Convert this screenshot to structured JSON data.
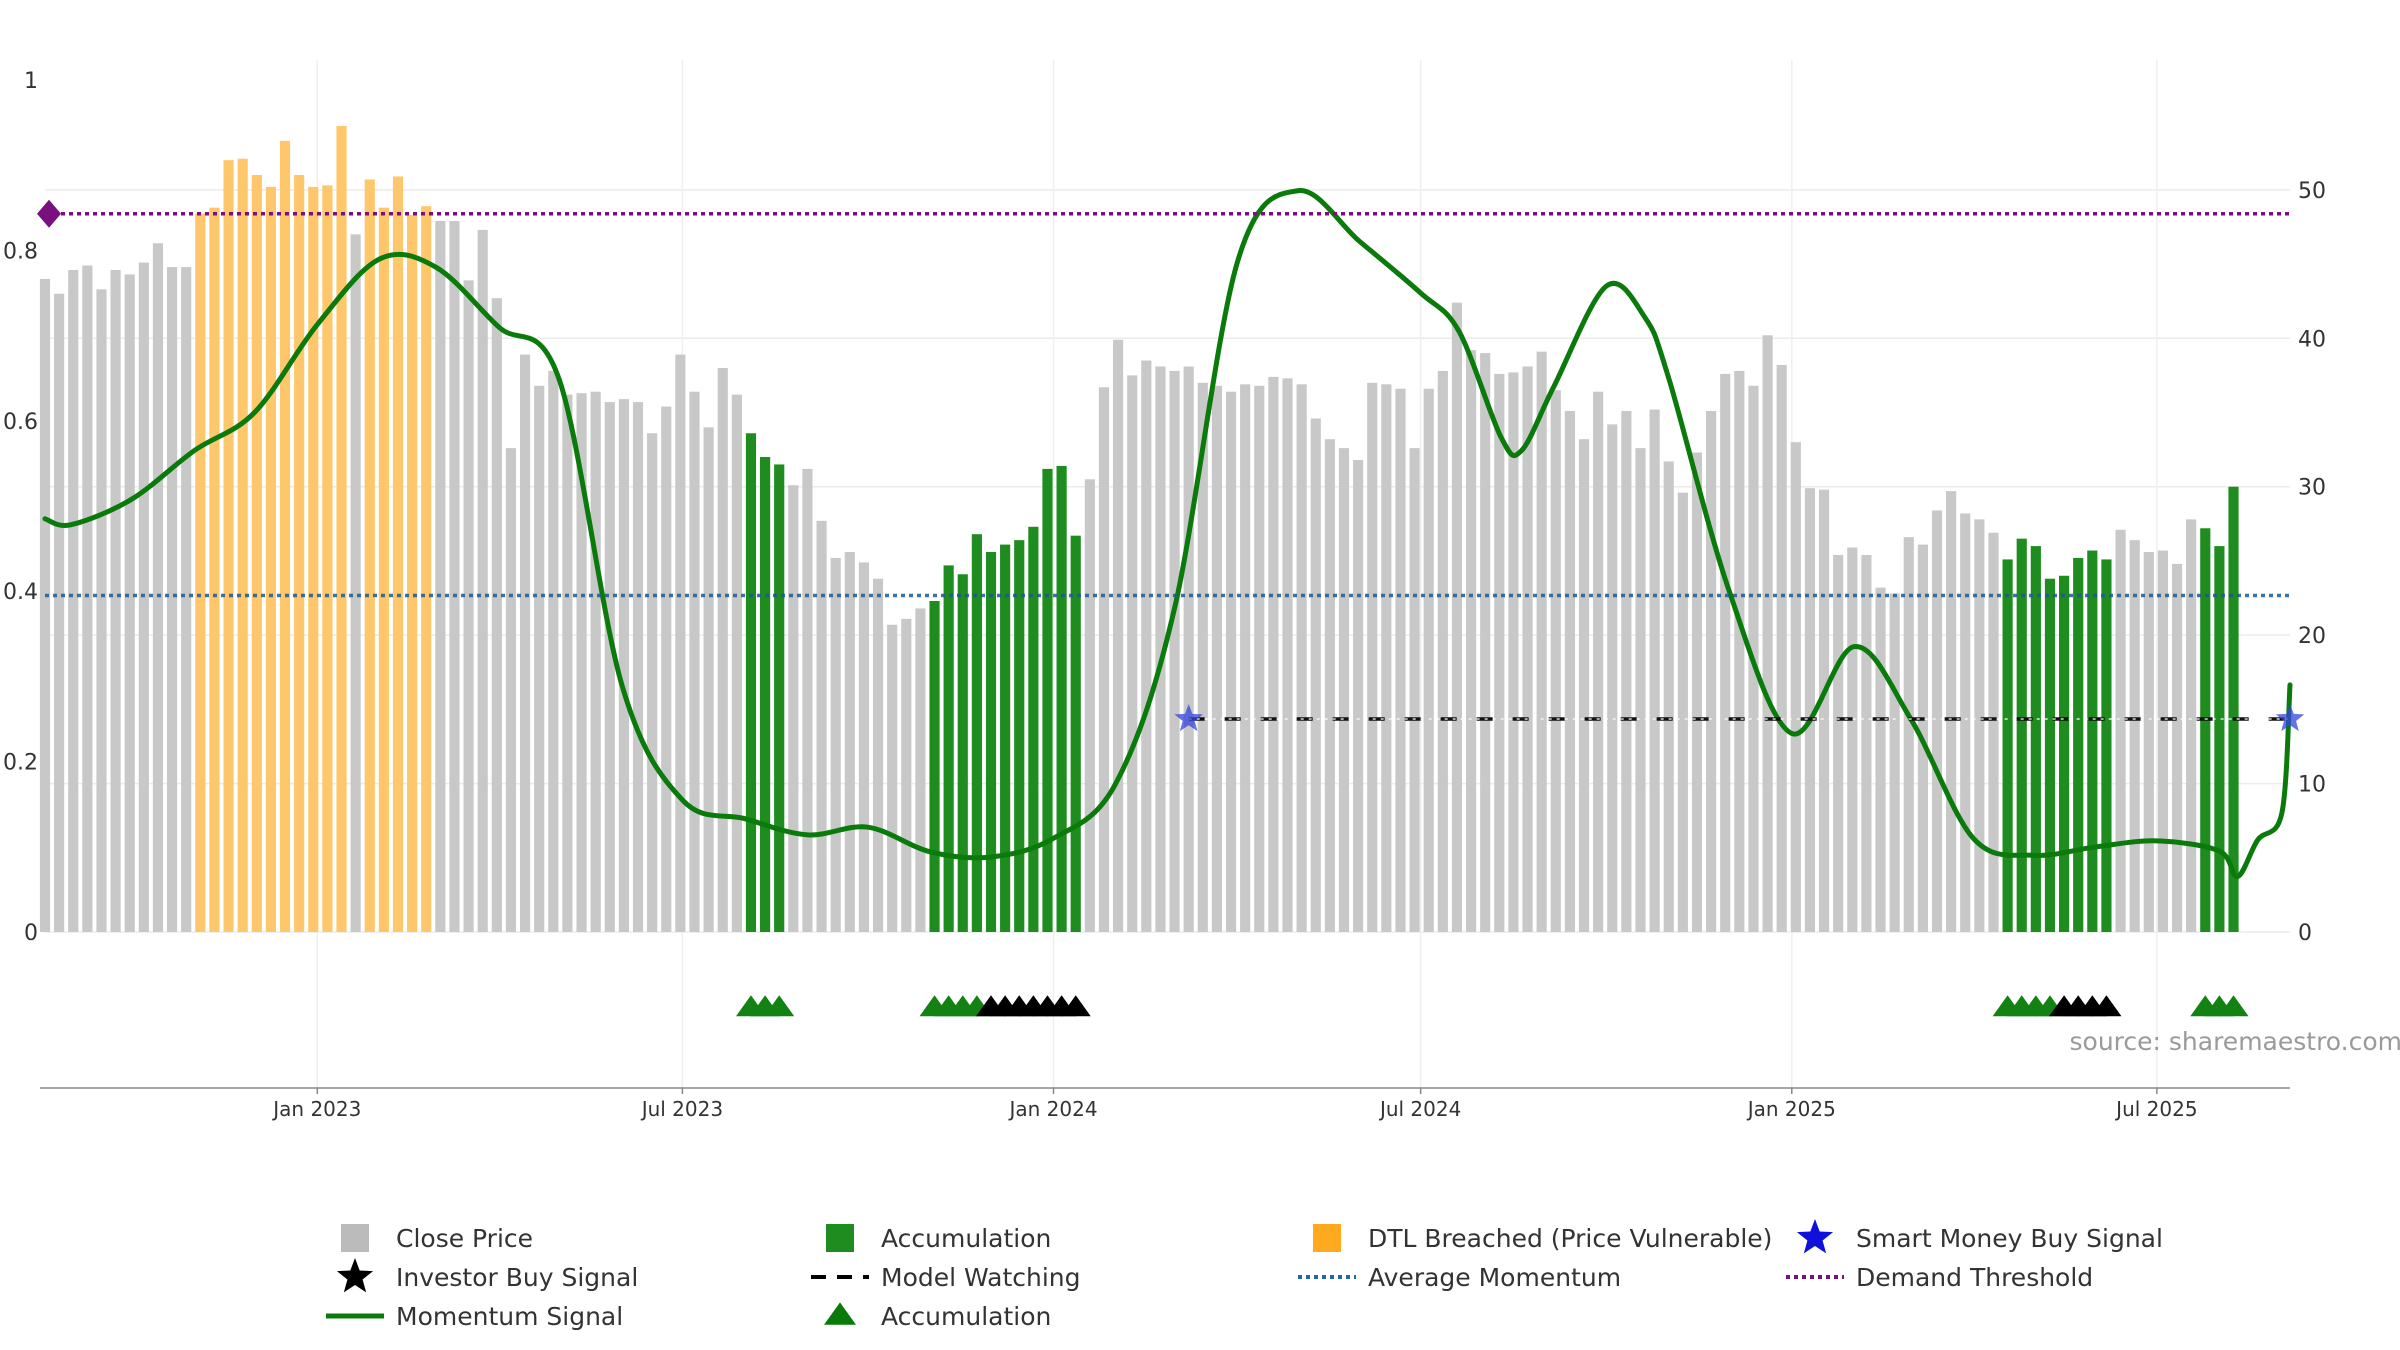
{
  "chart_data": {
    "type": "bar",
    "source": "source: sharemaestro.com",
    "left_axis": {
      "ticks": [
        {
          "v": 0,
          "label": "0"
        },
        {
          "v": 0.2,
          "label": "0.2"
        },
        {
          "v": 0.4,
          "label": "0.4"
        },
        {
          "v": 0.6,
          "label": "0.6"
        },
        {
          "v": 0.8,
          "label": "0.8"
        },
        {
          "v": 1,
          "label": "1"
        }
      ],
      "ylim": [
        0,
        1
      ]
    },
    "right_axis": {
      "ticks": [
        {
          "v": 0,
          "label": "0"
        },
        {
          "v": 10,
          "label": "10"
        },
        {
          "v": 20,
          "label": "20"
        },
        {
          "v": 30,
          "label": "30"
        },
        {
          "v": 40,
          "label": "40"
        },
        {
          "v": 50,
          "label": "50"
        }
      ],
      "ylim": [
        0,
        57.4
      ]
    },
    "x_axis": {
      "start": "2022-08-19",
      "end": "2025-09-05",
      "ticks": [
        {
          "date": "2023-01-01",
          "label": "Jan 2023"
        },
        {
          "date": "2023-07-01",
          "label": "Jul 2023"
        },
        {
          "date": "2024-01-01",
          "label": "Jan 2024"
        },
        {
          "date": "2024-07-01",
          "label": "Jul 2024"
        },
        {
          "date": "2025-01-01",
          "label": "Jan 2025"
        },
        {
          "date": "2025-07-01",
          "label": "Jul 2025"
        }
      ]
    },
    "bars": {
      "name": "Close Price",
      "first_date": "2022-08-19",
      "interval_days": 7,
      "values": [
        44,
        43,
        44.6,
        44.9,
        43.3,
        44.6,
        44.3,
        45.1,
        46.4,
        44.8,
        44.8,
        48.4,
        48.8,
        52,
        52.1,
        51,
        50.2,
        53.3,
        51,
        50.2,
        50.3,
        54.3,
        47,
        50.7,
        48.8,
        50.9,
        48.3,
        48.9,
        47.9,
        47.9,
        43.9,
        47.3,
        42.7,
        32.6,
        38.9,
        36.8,
        37.8,
        36.2,
        36.3,
        36.4,
        35.7,
        35.9,
        35.7,
        33.6,
        35.4,
        38.9,
        36.4,
        34,
        38,
        36.2,
        33.6,
        32,
        31.5,
        30.1,
        31.2,
        27.7,
        25.2,
        25.6,
        24.9,
        23.8,
        20.7,
        21.1,
        21.8,
        22.3,
        24.7,
        24.1,
        26.8,
        25.6,
        26.1,
        26.4,
        27.3,
        31.2,
        31.4,
        26.7,
        30.5,
        36.7,
        39.9,
        37.5,
        38.5,
        38.1,
        37.8,
        38.1,
        37,
        36.8,
        36.4,
        36.9,
        36.8,
        37.4,
        37.3,
        36.9,
        34.6,
        33.2,
        32.6,
        31.8,
        37,
        36.9,
        36.6,
        32.6,
        36.6,
        37.8,
        42.4,
        39.2,
        39,
        37.6,
        37.7,
        38.1,
        39.1,
        36.5,
        35.1,
        33.2,
        36.4,
        34.2,
        35.1,
        32.6,
        35.2,
        31.7,
        29.6,
        32.3,
        35.1,
        37.6,
        37.8,
        36.8,
        40.2,
        38.2,
        33,
        29.9,
        29.8,
        25.4,
        25.9,
        25.4,
        23.2,
        22.8,
        26.6,
        26.1,
        28.4,
        29.7,
        28.2,
        27.8,
        26.9,
        25.1,
        26.5,
        26,
        23.8,
        24,
        25.2,
        25.7,
        25.1,
        27.1,
        26.4,
        25.6,
        25.7,
        24.8,
        27.8,
        27.2,
        26,
        30
      ],
      "colors": {
        "normal": "#c8c8c8",
        "accumulation": "#1f8c1f",
        "dtl_breached": "#ffc76b"
      },
      "accumulation_ranges": [
        [
          50,
          52
        ],
        [
          63,
          73
        ],
        [
          139,
          146
        ],
        [
          153,
          156
        ]
      ],
      "dtl_breached_ranges": [
        [
          11,
          21
        ],
        [
          23,
          27
        ]
      ]
    },
    "series": [
      {
        "name": "Momentum Signal",
        "type": "line",
        "axis": "left",
        "color": "#0a7a0a",
        "points": [
          [
            "2022-08-19",
            0.485
          ],
          [
            "2022-09-01",
            0.478
          ],
          [
            "2022-10-01",
            0.508
          ],
          [
            "2022-11-01",
            0.565
          ],
          [
            "2022-12-01",
            0.61
          ],
          [
            "2023-01-01",
            0.713
          ],
          [
            "2023-02-01",
            0.79
          ],
          [
            "2023-03-01",
            0.78
          ],
          [
            "2023-04-01",
            0.71
          ],
          [
            "2023-05-01",
            0.648
          ],
          [
            "2023-06-01",
            0.29
          ],
          [
            "2023-07-01",
            0.155
          ],
          [
            "2023-08-01",
            0.133
          ],
          [
            "2023-09-01",
            0.114
          ],
          [
            "2023-10-01",
            0.123
          ],
          [
            "2023-11-01",
            0.094
          ],
          [
            "2023-12-01",
            0.088
          ],
          [
            "2024-01-01",
            0.11
          ],
          [
            "2024-02-01",
            0.175
          ],
          [
            "2024-03-01",
            0.38
          ],
          [
            "2024-04-01",
            0.785
          ],
          [
            "2024-05-01",
            0.87
          ],
          [
            "2024-06-01",
            0.81
          ],
          [
            "2024-07-01",
            0.75
          ],
          [
            "2024-07-20",
            0.705
          ],
          [
            "2024-08-10",
            0.58
          ],
          [
            "2024-08-20",
            0.565
          ],
          [
            "2024-09-05",
            0.64
          ],
          [
            "2024-10-01",
            0.758
          ],
          [
            "2024-10-20",
            0.722
          ],
          [
            "2024-11-01",
            0.65
          ],
          [
            "2024-12-01",
            0.4
          ],
          [
            "2025-01-01",
            0.233
          ],
          [
            "2025-02-01",
            0.335
          ],
          [
            "2025-03-01",
            0.25
          ],
          [
            "2025-04-01",
            0.11
          ],
          [
            "2025-05-01",
            0.09
          ],
          [
            "2025-06-01",
            0.1
          ],
          [
            "2025-07-01",
            0.107
          ],
          [
            "2025-08-01",
            0.095
          ],
          [
            "2025-08-10",
            0.065
          ],
          [
            "2025-08-20",
            0.108
          ],
          [
            "2025-09-01",
            0.14
          ],
          [
            "2025-09-05",
            0.29
          ]
        ]
      },
      {
        "name": "Average Momentum",
        "type": "line",
        "axis": "left",
        "color": "#1f5a8c",
        "value": 0.395
      },
      {
        "name": "Demand Threshold",
        "type": "line",
        "axis": "left",
        "color": "#7a1080",
        "value": 0.843
      },
      {
        "name": "Model Watching",
        "type": "line",
        "axis": "left",
        "color": "#111111",
        "value": 0.25,
        "from": "2024-03-08",
        "to": "2025-09-05"
      },
      {
        "name": "Smart Money Buy Signal",
        "type": "scatter",
        "axis": "left",
        "color": "#3344dd",
        "points": [
          [
            "2024-03-08",
            0.25
          ],
          [
            "2025-09-05",
            0.25
          ]
        ]
      },
      {
        "name": "Accumulation",
        "type": "scatter",
        "marker": "triangle",
        "color": "#128212",
        "first_date": "2022-08-19",
        "interval_days": 7,
        "indices": [
          50,
          51,
          52,
          63,
          64,
          65,
          66,
          139,
          140,
          141,
          142,
          153,
          154,
          155
        ]
      },
      {
        "name": "Investor Buy Signal",
        "type": "scatter",
        "marker": "triangle",
        "color": "#000000",
        "first_date": "2022-08-19",
        "interval_days": 7,
        "indices": [
          67,
          68,
          69,
          70,
          71,
          72,
          73,
          143,
          144,
          145,
          146
        ]
      }
    ],
    "legend": {
      "placement": "bottom",
      "entries": [
        {
          "label": "Close Price",
          "symbol": "square",
          "color": "#bbbbbb"
        },
        {
          "label": "Accumulation",
          "symbol": "square",
          "color": "#1f8c1f"
        },
        {
          "label": "DTL Breached (Price Vulnerable)",
          "symbol": "square",
          "color": "#ffa91f"
        },
        {
          "label": "Smart Money Buy Signal",
          "symbol": "star",
          "color": "#1010dd"
        },
        {
          "label": "Investor Buy Signal",
          "symbol": "star",
          "color": "#000000"
        },
        {
          "label": "Model Watching",
          "symbol": "dash",
          "color": "#000000"
        },
        {
          "label": "Average Momentum",
          "symbol": "dotted",
          "color": "#1f6aa5"
        },
        {
          "label": "Demand Threshold",
          "symbol": "dotted",
          "color": "#7a1080"
        },
        {
          "label": "Momentum Signal",
          "symbol": "line",
          "color": "#0a7a0a"
        },
        {
          "label": "Accumulation",
          "symbol": "triangle",
          "color": "#0a7a0a"
        }
      ]
    }
  }
}
